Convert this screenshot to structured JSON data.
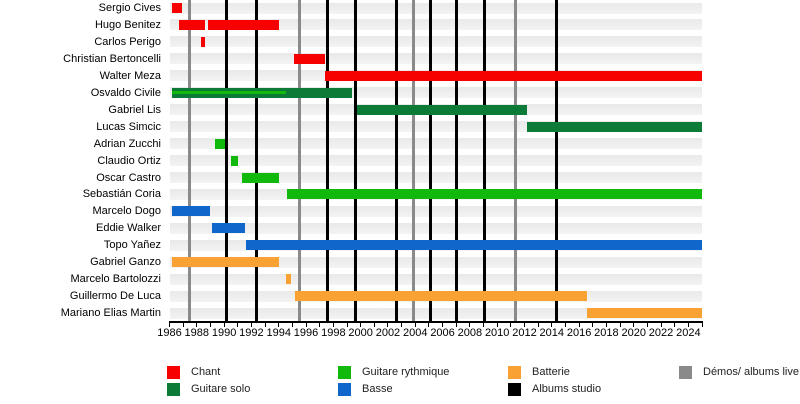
{
  "chart_data": {
    "type": "timeline-gantt",
    "description_visible_text_only": true,
    "x_axis": {
      "min_year": 1986,
      "max_year": 2025,
      "tick_every_years": 1,
      "label_every_years": 2,
      "tick_labels": [
        "1986",
        "1988",
        "1990",
        "1992",
        "1994",
        "1996",
        "1998",
        "2000",
        "2002",
        "2004",
        "2006",
        "2008",
        "2010",
        "2012",
        "2014",
        "2016",
        "2018",
        "2020",
        "2022",
        "2024"
      ]
    },
    "roles": {
      "chant": {
        "label": "Chant",
        "color": "#f70000"
      },
      "guitare-solo": {
        "label": "Guitare solo",
        "color": "#0c7b38"
      },
      "guitare-rythmique": {
        "label": "Guitare rythmique",
        "color": "#10b90c"
      },
      "basse": {
        "label": "Basse",
        "color": "#1166cc"
      },
      "batterie": {
        "label": "Batterie",
        "color": "#f9a132"
      }
    },
    "events": [
      {
        "id": "albums-studio",
        "label": "Albums studio",
        "color": "#000000",
        "years": [
          1990.2,
          1992.35,
          1997.6,
          1999.65,
          2002.65,
          2005.1,
          2007.05,
          2009.1,
          2014.35
        ]
      },
      {
        "id": "demos-albums-live",
        "label": "Démos/ albums live",
        "color": "#8a8a8a",
        "years": [
          1987.45,
          1995.55,
          2003.85,
          2011.35
        ]
      }
    ],
    "members": [
      {
        "name": "Sergio Cives",
        "role": "chant",
        "segments": [
          [
            1986.2,
            1986.9
          ]
        ]
      },
      {
        "name": "Hugo Benitez",
        "role": "chant",
        "segments": [
          [
            1986.7,
            1988.6
          ],
          [
            1988.85,
            1994.0
          ]
        ]
      },
      {
        "name": "Carlos Perigo",
        "role": "chant",
        "segments": [
          [
            1988.3,
            1988.6
          ]
        ]
      },
      {
        "name": "Christian Bertoncelli",
        "role": "chant",
        "segments": [
          [
            1995.1,
            1997.4
          ]
        ]
      },
      {
        "name": "Walter Meza",
        "role": "chant",
        "segments": [
          [
            1997.4,
            2025.0
          ]
        ]
      },
      {
        "name": "Osvaldo Civile",
        "role": "guitare-solo",
        "segments": [
          [
            1986.2,
            1999.4
          ]
        ],
        "stripe": {
          "role": "guitare-rythmique",
          "range": [
            1986.2,
            1994.5
          ]
        }
      },
      {
        "name": "Gabriel Lis",
        "role": "guitare-solo",
        "segments": [
          [
            1999.7,
            2012.2
          ]
        ]
      },
      {
        "name": "Lucas Simcic",
        "role": "guitare-solo",
        "segments": [
          [
            2012.2,
            2025.0
          ]
        ]
      },
      {
        "name": "Adrian Zucchi",
        "role": "guitare-rythmique",
        "segments": [
          [
            1989.3,
            1990.1
          ]
        ]
      },
      {
        "name": "Claudio Ortiz",
        "role": "guitare-rythmique",
        "segments": [
          [
            1990.5,
            1991.0
          ]
        ]
      },
      {
        "name": "Oscar Castro",
        "role": "guitare-rythmique",
        "segments": [
          [
            1991.3,
            1994.0
          ]
        ]
      },
      {
        "name": "Sebastián Coria",
        "role": "guitare-rythmique",
        "segments": [
          [
            1994.6,
            2025.0
          ]
        ]
      },
      {
        "name": "Marcelo Dogo",
        "role": "basse",
        "segments": [
          [
            1986.2,
            1989.0
          ]
        ]
      },
      {
        "name": "Eddie Walker",
        "role": "basse",
        "segments": [
          [
            1989.1,
            1991.5
          ]
        ]
      },
      {
        "name": "Topo Yañez",
        "role": "basse",
        "segments": [
          [
            1991.6,
            2025.0
          ]
        ]
      },
      {
        "name": "Gabriel Ganzo",
        "role": "batterie",
        "segments": [
          [
            1986.2,
            1994.0
          ]
        ]
      },
      {
        "name": "Marcelo Bartolozzi",
        "role": "batterie",
        "segments": [
          [
            1994.55,
            1994.9
          ]
        ]
      },
      {
        "name": "Guillermo De Luca",
        "role": "batterie",
        "segments": [
          [
            1995.2,
            2016.6
          ]
        ]
      },
      {
        "name": "Mariano Elias Martin",
        "role": "batterie",
        "segments": [
          [
            2016.6,
            2025.0
          ]
        ]
      }
    ],
    "legend": {
      "columns": [
        [
          "chant",
          "guitare-solo"
        ],
        [
          "guitare-rythmique",
          "basse"
        ],
        [
          "batterie",
          "albums-studio"
        ],
        [
          "demos-albums-live"
        ]
      ]
    },
    "row_band_color": "#ececec"
  }
}
